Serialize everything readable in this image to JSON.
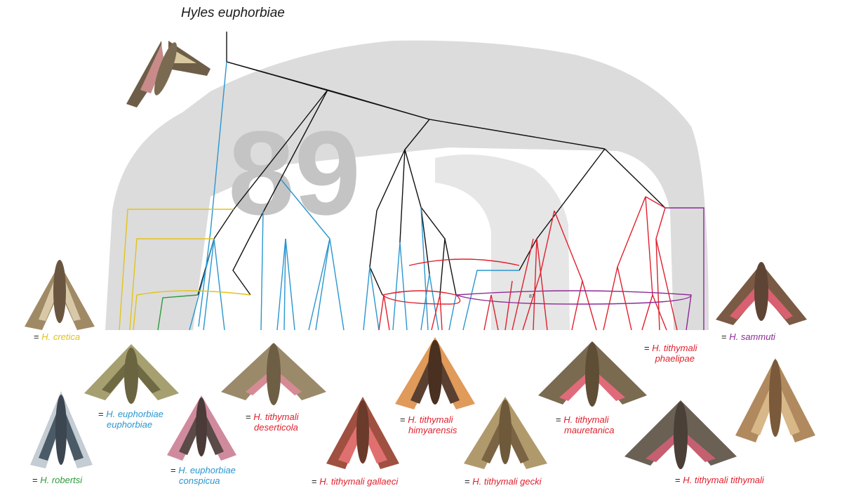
{
  "title": "Hyles euphorbiae",
  "background_number": "89",
  "node_support_label": "87",
  "colors": {
    "yellow": "#e2c31a",
    "blue": "#2a96cf",
    "red": "#e0202c",
    "purple": "#8e2a96",
    "green": "#2e9a3c",
    "black": "#111111",
    "backdrop": "#dcdcdc"
  },
  "labels": {
    "cretica": {
      "eq": "= ",
      "name": "H. cretica"
    },
    "sammuti": {
      "eq": "= ",
      "name": "H. sammuti"
    },
    "phaelipae": {
      "eq": "= ",
      "name": "H. tithymali",
      "line2": "phaelipae"
    },
    "euph_euph": {
      "eq": "= ",
      "name": "H. euphorbiae",
      "line2": "euphorbiae"
    },
    "deserticola": {
      "eq": "= ",
      "name": "H. tithymali",
      "line2": "deserticola"
    },
    "himyarensis": {
      "eq": "= ",
      "name": "H. tithymali",
      "line2": "himyarensis"
    },
    "mauretanica": {
      "eq": "= ",
      "name": "H. tithymali",
      "line2": "mauretanica"
    },
    "conspicua": {
      "eq": "= ",
      "name": "H. euphorbiae",
      "line2": "conspicua"
    },
    "robertsi": {
      "eq": "= ",
      "name": "H. robertsi"
    },
    "gallaeci": {
      "eq": "= ",
      "name": "H. tithymali gallaeci"
    },
    "gecki": {
      "eq": "= ",
      "name": "H. tithymali gecki"
    },
    "tithymali": {
      "eq": "= ",
      "name": "H. tithymali tithymali"
    }
  },
  "moth_images": [
    "euphorbiae-moth-top",
    "cretica-moth",
    "sammuti-moth",
    "robertsi-moth",
    "euphorbiae-euphorbiae-moth",
    "conspicua-moth",
    "deserticola-moth",
    "gallaeci-moth",
    "himyarensis-moth",
    "gecki-moth",
    "mauretanica-moth",
    "tithymali-tithymali-moth",
    "tithymali-right-moth"
  ]
}
